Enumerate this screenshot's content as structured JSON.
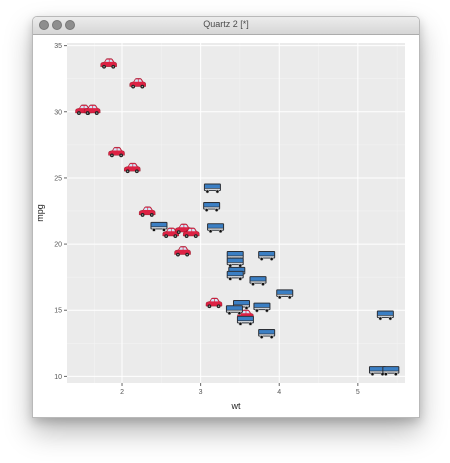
{
  "window": {
    "title": "Quartz 2 [*]"
  },
  "colors": {
    "panel": "#ebebeb",
    "grid": "#ffffff",
    "car_body": "#dd2244",
    "bus_body": "#3b7fc4"
  },
  "icons": {
    "car": "car-icon",
    "bus": "bus-icon"
  },
  "chart_data": {
    "type": "scatter",
    "title": "",
    "xlabel": "wt",
    "ylabel": "mpg",
    "xlim": [
      1.3,
      5.6
    ],
    "ylim": [
      9.5,
      35.2
    ],
    "xticks": [
      2,
      3,
      4,
      5
    ],
    "yticks": [
      10,
      15,
      20,
      25,
      30,
      35
    ],
    "grid": true,
    "legend": "none",
    "series": [
      {
        "marker": "car",
        "points": [
          {
            "x": 1.51,
            "y": 30.1
          },
          {
            "x": 1.62,
            "y": 30.1
          },
          {
            "x": 1.83,
            "y": 33.6
          },
          {
            "x": 2.2,
            "y": 32.1
          },
          {
            "x": 1.93,
            "y": 26.9
          },
          {
            "x": 2.13,
            "y": 25.7
          },
          {
            "x": 2.32,
            "y": 22.4
          },
          {
            "x": 2.62,
            "y": 20.8
          },
          {
            "x": 2.78,
            "y": 21.1
          },
          {
            "x": 2.88,
            "y": 20.8
          },
          {
            "x": 2.77,
            "y": 19.4
          },
          {
            "x": 3.17,
            "y": 15.5
          },
          {
            "x": 3.57,
            "y": 14.6
          }
        ]
      },
      {
        "marker": "bus",
        "points": [
          {
            "x": 3.15,
            "y": 24.2
          },
          {
            "x": 3.14,
            "y": 22.8
          },
          {
            "x": 2.47,
            "y": 21.3
          },
          {
            "x": 3.19,
            "y": 21.2
          },
          {
            "x": 3.44,
            "y": 19.1
          },
          {
            "x": 3.44,
            "y": 18.6
          },
          {
            "x": 3.46,
            "y": 17.9
          },
          {
            "x": 3.44,
            "y": 17.6
          },
          {
            "x": 3.84,
            "y": 19.1
          },
          {
            "x": 3.73,
            "y": 17.2
          },
          {
            "x": 4.07,
            "y": 16.2
          },
          {
            "x": 3.78,
            "y": 15.2
          },
          {
            "x": 3.52,
            "y": 15.4
          },
          {
            "x": 3.43,
            "y": 15.0
          },
          {
            "x": 3.57,
            "y": 14.2
          },
          {
            "x": 3.84,
            "y": 13.2
          },
          {
            "x": 5.35,
            "y": 14.6
          },
          {
            "x": 5.25,
            "y": 10.4
          },
          {
            "x": 5.42,
            "y": 10.4
          }
        ]
      }
    ]
  }
}
